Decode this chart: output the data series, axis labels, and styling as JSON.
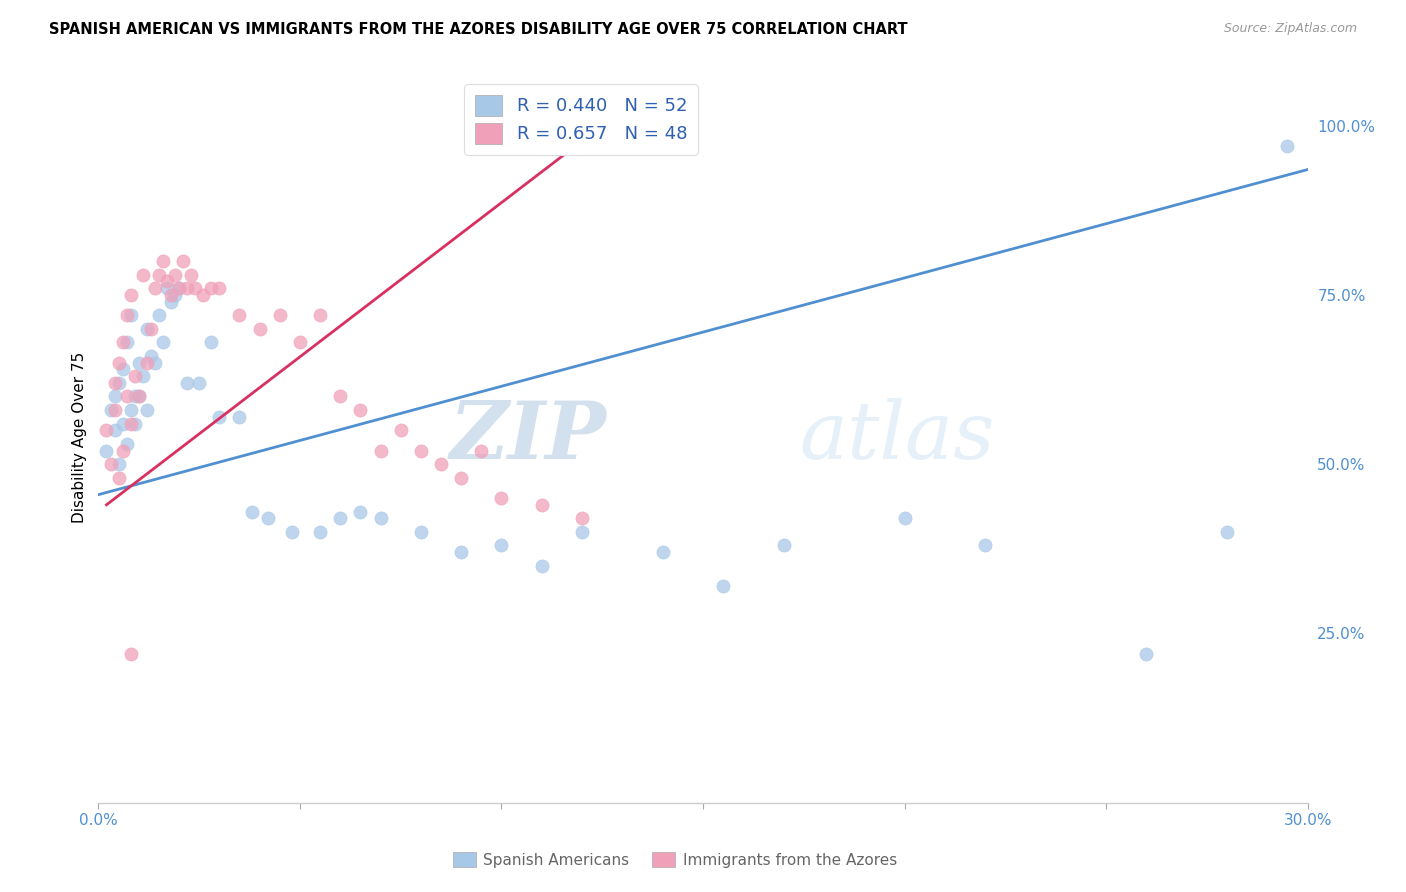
{
  "title": "SPANISH AMERICAN VS IMMIGRANTS FROM THE AZORES DISABILITY AGE OVER 75 CORRELATION CHART",
  "source": "Source: ZipAtlas.com",
  "ylabel": "Disability Age Over 75",
  "ylabel_right_ticks": [
    "100.0%",
    "75.0%",
    "50.0%",
    "25.0%"
  ],
  "ylabel_right_vals": [
    1.0,
    0.75,
    0.5,
    0.25
  ],
  "xmin": 0.0,
  "xmax": 0.3,
  "ymin": 0.0,
  "ymax": 1.08,
  "legend_blue_R": "R = 0.440",
  "legend_blue_N": "N = 52",
  "legend_pink_R": "R = 0.657",
  "legend_pink_N": "N = 48",
  "legend_label_blue": "Spanish Americans",
  "legend_label_pink": "Immigrants from the Azores",
  "blue_color": "#a8c8e8",
  "pink_color": "#f0a0b8",
  "blue_line_color": "#5090d0",
  "pink_line_color": "#d83060",
  "watermark_zip": "ZIP",
  "watermark_atlas": "atlas",
  "blue_scatter_x": [
    0.002,
    0.003,
    0.004,
    0.004,
    0.005,
    0.005,
    0.006,
    0.006,
    0.007,
    0.007,
    0.008,
    0.008,
    0.009,
    0.009,
    0.01,
    0.01,
    0.011,
    0.012,
    0.012,
    0.013,
    0.014,
    0.015,
    0.016,
    0.017,
    0.018,
    0.019,
    0.02,
    0.022,
    0.025,
    0.028,
    0.03,
    0.035,
    0.038,
    0.042,
    0.048,
    0.055,
    0.06,
    0.065,
    0.07,
    0.08,
    0.09,
    0.1,
    0.11,
    0.12,
    0.14,
    0.155,
    0.17,
    0.2,
    0.22,
    0.26,
    0.28,
    0.295
  ],
  "blue_scatter_y": [
    0.52,
    0.58,
    0.6,
    0.55,
    0.5,
    0.62,
    0.56,
    0.64,
    0.53,
    0.68,
    0.58,
    0.72,
    0.6,
    0.56,
    0.65,
    0.6,
    0.63,
    0.58,
    0.7,
    0.66,
    0.65,
    0.72,
    0.68,
    0.76,
    0.74,
    0.75,
    0.76,
    0.62,
    0.62,
    0.68,
    0.57,
    0.57,
    0.43,
    0.42,
    0.4,
    0.4,
    0.42,
    0.43,
    0.42,
    0.4,
    0.37,
    0.38,
    0.35,
    0.4,
    0.37,
    0.32,
    0.38,
    0.42,
    0.38,
    0.22,
    0.4,
    0.97
  ],
  "pink_scatter_x": [
    0.002,
    0.003,
    0.004,
    0.004,
    0.005,
    0.005,
    0.006,
    0.006,
    0.007,
    0.007,
    0.008,
    0.008,
    0.009,
    0.01,
    0.011,
    0.012,
    0.013,
    0.014,
    0.015,
    0.016,
    0.017,
    0.018,
    0.019,
    0.02,
    0.021,
    0.022,
    0.023,
    0.024,
    0.026,
    0.028,
    0.03,
    0.035,
    0.04,
    0.045,
    0.05,
    0.055,
    0.06,
    0.065,
    0.07,
    0.075,
    0.08,
    0.085,
    0.09,
    0.095,
    0.1,
    0.11,
    0.12,
    0.008
  ],
  "pink_scatter_y": [
    0.55,
    0.5,
    0.58,
    0.62,
    0.48,
    0.65,
    0.52,
    0.68,
    0.6,
    0.72,
    0.56,
    0.75,
    0.63,
    0.6,
    0.78,
    0.65,
    0.7,
    0.76,
    0.78,
    0.8,
    0.77,
    0.75,
    0.78,
    0.76,
    0.8,
    0.76,
    0.78,
    0.76,
    0.75,
    0.76,
    0.76,
    0.72,
    0.7,
    0.72,
    0.68,
    0.72,
    0.6,
    0.58,
    0.52,
    0.55,
    0.52,
    0.5,
    0.48,
    0.52,
    0.45,
    0.44,
    0.42,
    0.22
  ],
  "blue_trendline_x": [
    0.0,
    0.3
  ],
  "blue_trendline_y": [
    0.455,
    0.935
  ],
  "pink_trendline_x": [
    0.002,
    0.125
  ],
  "pink_trendline_y": [
    0.44,
    1.0
  ]
}
